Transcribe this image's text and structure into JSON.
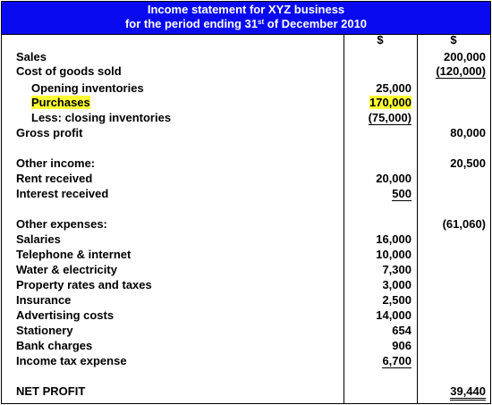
{
  "header": {
    "title": "Income statement for XYZ business",
    "subtitle_pre": "for the period ending 31",
    "subtitle_sup": "st",
    "subtitle_post": " of December 2010"
  },
  "currency": {
    "col1": "$",
    "col2": "$"
  },
  "sales": {
    "label": "Sales",
    "total": "200,000"
  },
  "cogs": {
    "label": "Cost of goods sold",
    "total": "(120,000)"
  },
  "opening": {
    "label": "Opening inventories",
    "amount": "25,000"
  },
  "purchases": {
    "label": "Purchases",
    "amount": "170,000",
    "highlight": "#ffff33"
  },
  "closing": {
    "label": "Less: closing inventories",
    "amount": "(75,000)"
  },
  "gross_profit": {
    "label": "Gross profit",
    "total": "80,000"
  },
  "other_income": {
    "label": "Other income:",
    "total": "20,500"
  },
  "rent": {
    "label": "Rent received",
    "amount": "20,000"
  },
  "interest": {
    "label": "Interest received",
    "amount": "500"
  },
  "other_expenses": {
    "label": "Other expenses:",
    "total": "(61,060)"
  },
  "expenses": [
    {
      "label": "Salaries",
      "amount": "16,000"
    },
    {
      "label": "Telephone & internet",
      "amount": "10,000"
    },
    {
      "label": "Water & electricity",
      "amount": "7,300"
    },
    {
      "label": "Property rates and taxes",
      "amount": "3,000"
    },
    {
      "label": "Insurance",
      "amount": "2,500"
    },
    {
      "label": "Advertising costs",
      "amount": "14,000"
    },
    {
      "label": "Stationery",
      "amount": "654"
    },
    {
      "label": "Bank charges",
      "amount": "906"
    },
    {
      "label": "Income tax expense",
      "amount": "6,700"
    }
  ],
  "net_profit": {
    "label": "NET PROFIT",
    "total": "39,440"
  },
  "colors": {
    "header_bg": "#0a0af0",
    "header_text": "#ffffff"
  }
}
